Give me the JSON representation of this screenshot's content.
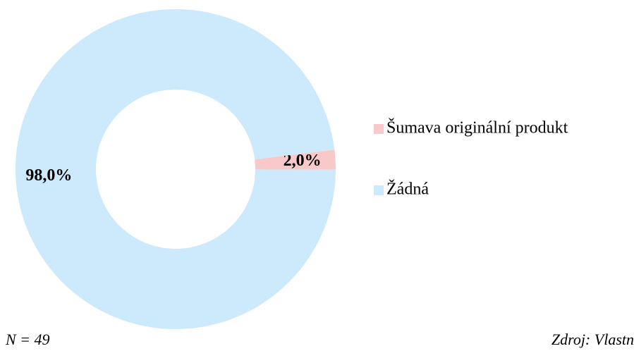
{
  "chart_data": {
    "type": "donut",
    "categories": [
      "Šumava originální produkt",
      "Žádná"
    ],
    "values": [
      2.0,
      98.0
    ],
    "value_labels": [
      "2,0%",
      "98,0%"
    ],
    "colors": [
      "#f9c9c9",
      "#cdeafc"
    ],
    "legend": "right",
    "note": "N = 49",
    "source": "Zdroj: Vlastn"
  }
}
